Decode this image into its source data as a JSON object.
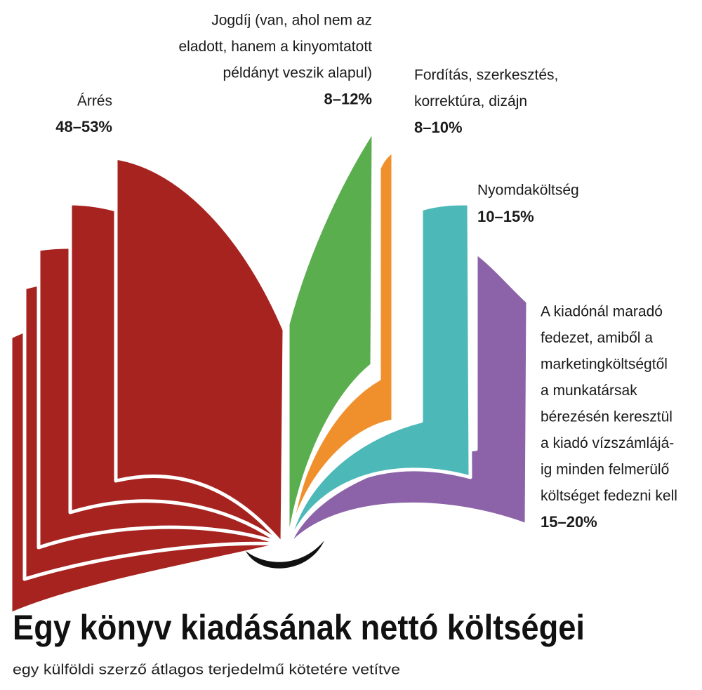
{
  "title": "Egy könyv kiadásának nettó költségei",
  "subtitle": "egy külföldi szerző átlagos terjedelmű kötetére vetítve",
  "segments": [
    {
      "label": [
        "Árrés"
      ],
      "value": "48–53%"
    },
    {
      "label": [
        "Jogdíj (van, ahol nem az",
        "eladott, hanem a kinyomtatott",
        "példányt veszik alapul)"
      ],
      "value": "8–12%"
    },
    {
      "label": [
        "Fordítás, szerkesztés,",
        "korrektúra, dizájn"
      ],
      "value": "8–10%"
    },
    {
      "label": [
        "Nyomdaköltség"
      ],
      "value": "10–15%"
    },
    {
      "label": [
        "A kiadónál maradó",
        "fedezet, amiből a",
        "marketingköltségtől",
        "a munkatársak",
        "bérezésén keresztül",
        "a kiadó vízszámlájá-",
        "ig minden felmerülő",
        "költséget fedezni kell"
      ],
      "value": "15–20%"
    }
  ]
}
